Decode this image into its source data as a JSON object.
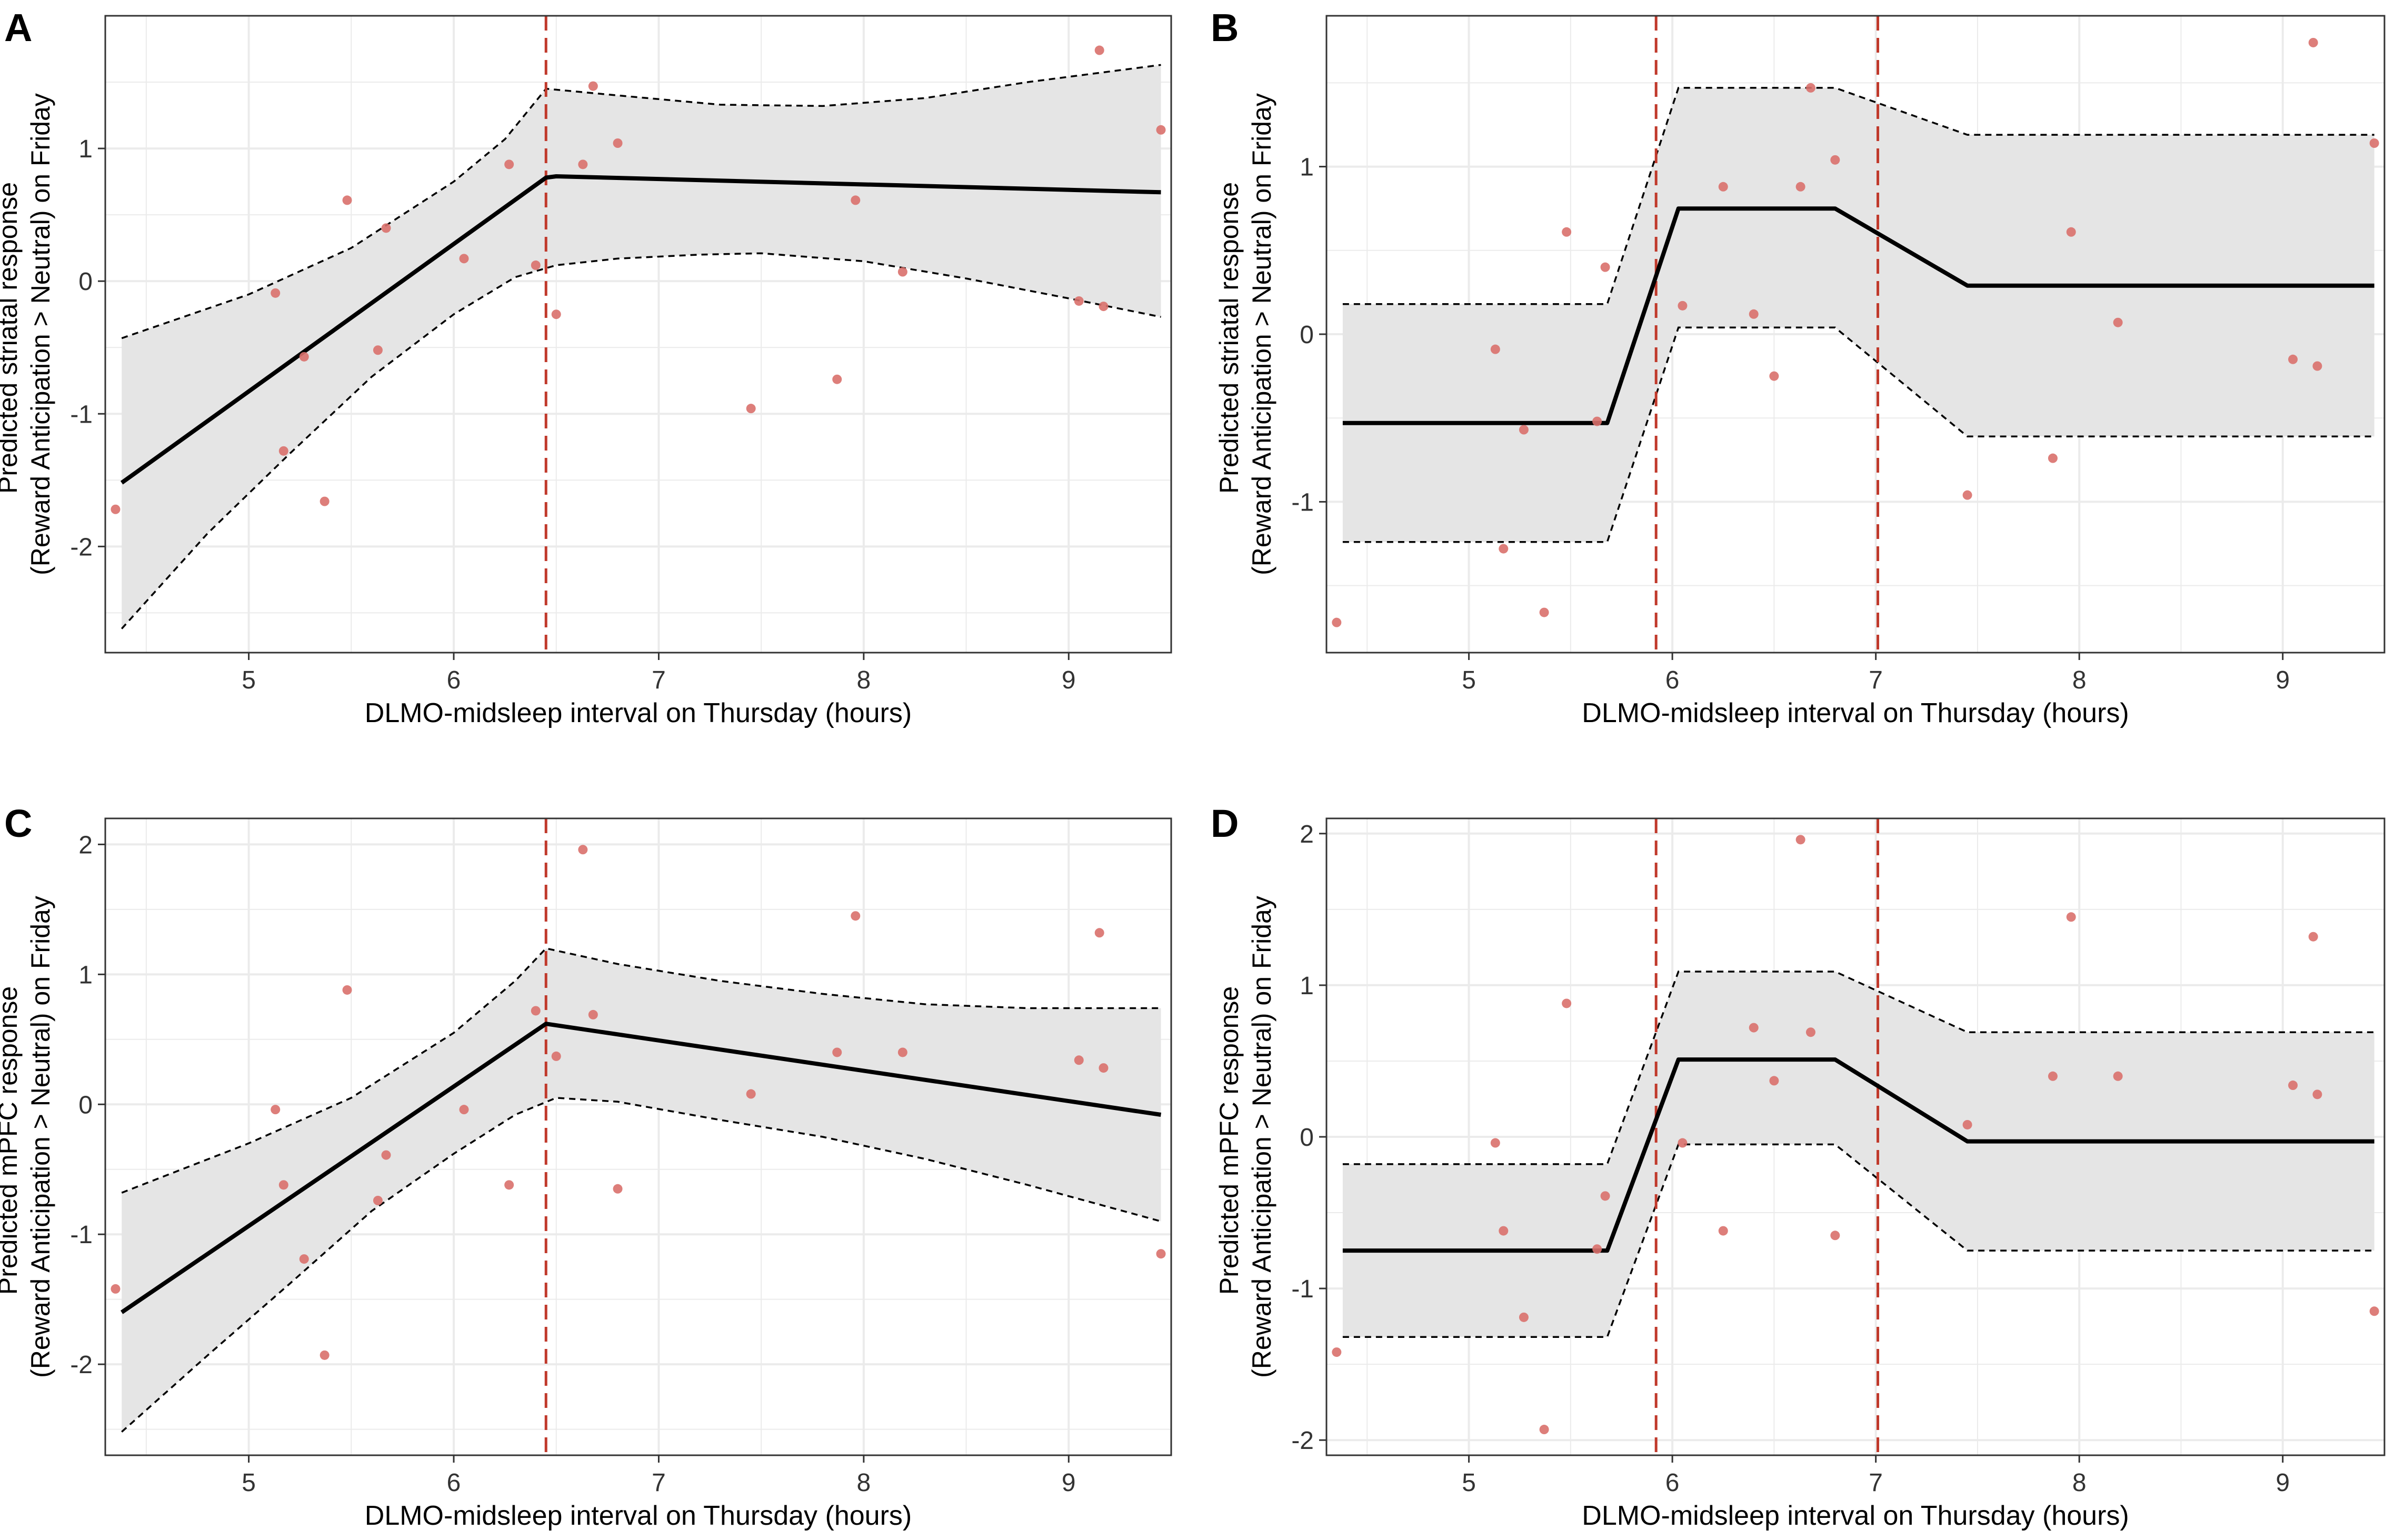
{
  "colors": {
    "grid": "#ebebeb",
    "panel_border": "#333333",
    "ribbon": "#e5e5e5",
    "ci_line": "#000000",
    "fit_line": "#000000",
    "point": "#d9706c",
    "breakpoint": "#c0392b",
    "text": "#333333"
  },
  "chart_data": [
    {
      "panel": "A",
      "type": "scatter",
      "xlabel": "DLMO-midsleep interval on Thursday (hours)",
      "ylabel": [
        "Predicted striatal response",
        "(Reward Anticipation > Neutral) on Friday"
      ],
      "xlim": [
        4.3,
        9.5
      ],
      "ylim": [
        -2.8,
        2.0
      ],
      "xticks": [
        5,
        6,
        7,
        8,
        9
      ],
      "yticks": [
        -2,
        -1,
        0,
        1
      ],
      "breakpoints": [
        6.45
      ],
      "points": [
        [
          4.35,
          -1.72
        ],
        [
          5.13,
          -0.09
        ],
        [
          5.17,
          -1.28
        ],
        [
          5.27,
          -0.57
        ],
        [
          5.37,
          -1.66
        ],
        [
          5.48,
          0.61
        ],
        [
          5.63,
          -0.52
        ],
        [
          5.67,
          0.4
        ],
        [
          6.05,
          0.17
        ],
        [
          6.27,
          0.88
        ],
        [
          6.4,
          0.12
        ],
        [
          6.5,
          -0.25
        ],
        [
          6.63,
          0.88
        ],
        [
          6.68,
          1.47
        ],
        [
          6.8,
          1.04
        ],
        [
          7.45,
          -0.96
        ],
        [
          7.87,
          -0.74
        ],
        [
          7.96,
          0.61
        ],
        [
          8.19,
          0.07
        ],
        [
          9.05,
          -0.15
        ],
        [
          9.15,
          1.74
        ],
        [
          9.17,
          -0.19
        ],
        [
          9.45,
          1.14
        ]
      ],
      "fit": [
        [
          4.38,
          -1.52
        ],
        [
          6.45,
          0.78
        ],
        [
          6.5,
          0.79
        ],
        [
          9.45,
          0.67
        ]
      ],
      "upper": [
        [
          4.38,
          -0.43
        ],
        [
          5.0,
          -0.1
        ],
        [
          5.5,
          0.25
        ],
        [
          6.0,
          0.75
        ],
        [
          6.25,
          1.07
        ],
        [
          6.45,
          1.45
        ],
        [
          6.8,
          1.4
        ],
        [
          7.3,
          1.33
        ],
        [
          7.8,
          1.32
        ],
        [
          8.3,
          1.38
        ],
        [
          8.8,
          1.5
        ],
        [
          9.45,
          1.63
        ]
      ],
      "lower": [
        [
          4.38,
          -2.62
        ],
        [
          4.8,
          -1.9
        ],
        [
          5.2,
          -1.3
        ],
        [
          5.6,
          -0.72
        ],
        [
          6.0,
          -0.25
        ],
        [
          6.3,
          0.03
        ],
        [
          6.5,
          0.12
        ],
        [
          6.8,
          0.17
        ],
        [
          7.2,
          0.2
        ],
        [
          7.5,
          0.21
        ],
        [
          8.0,
          0.15
        ],
        [
          8.5,
          0.02
        ],
        [
          9.0,
          -0.13
        ],
        [
          9.45,
          -0.27
        ]
      ]
    },
    {
      "panel": "B",
      "type": "scatter",
      "xlabel": "DLMO-midsleep interval on Thursday (hours)",
      "ylabel": [
        "Predicted striatal response",
        "(Reward Anticipation > Neutral) on Friday"
      ],
      "xlim": [
        4.3,
        9.5
      ],
      "ylim": [
        -1.9,
        1.9
      ],
      "xticks": [
        5,
        6,
        7,
        8,
        9
      ],
      "yticks": [
        -1,
        0,
        1
      ],
      "breakpoints": [
        5.92,
        7.01
      ],
      "points": [
        [
          4.35,
          -1.72
        ],
        [
          5.13,
          -0.09
        ],
        [
          5.17,
          -1.28
        ],
        [
          5.27,
          -0.57
        ],
        [
          5.37,
          -1.66
        ],
        [
          5.48,
          0.61
        ],
        [
          5.63,
          -0.52
        ],
        [
          5.67,
          0.4
        ],
        [
          6.05,
          0.17
        ],
        [
          6.25,
          0.88
        ],
        [
          6.4,
          0.12
        ],
        [
          6.5,
          -0.25
        ],
        [
          6.63,
          0.88
        ],
        [
          6.68,
          1.47
        ],
        [
          6.8,
          1.04
        ],
        [
          7.45,
          -0.96
        ],
        [
          7.87,
          -0.74
        ],
        [
          7.96,
          0.61
        ],
        [
          8.19,
          0.07
        ],
        [
          9.05,
          -0.15
        ],
        [
          9.15,
          1.74
        ],
        [
          9.17,
          -0.19
        ],
        [
          9.45,
          1.14
        ]
      ],
      "fit": [
        [
          4.38,
          -0.53
        ],
        [
          5.68,
          -0.53
        ],
        [
          6.03,
          0.75
        ],
        [
          6.8,
          0.75
        ],
        [
          7.45,
          0.29
        ],
        [
          9.45,
          0.29
        ]
      ],
      "upper": [
        [
          4.38,
          0.18
        ],
        [
          5.68,
          0.18
        ],
        [
          6.03,
          1.47
        ],
        [
          6.8,
          1.47
        ],
        [
          7.45,
          1.19
        ],
        [
          9.45,
          1.19
        ]
      ],
      "lower": [
        [
          4.38,
          -1.24
        ],
        [
          5.68,
          -1.24
        ],
        [
          6.03,
          0.04
        ],
        [
          6.8,
          0.04
        ],
        [
          7.45,
          -0.61
        ],
        [
          9.45,
          -0.61
        ]
      ]
    },
    {
      "panel": "C",
      "type": "scatter",
      "xlabel": "DLMO-midsleep interval on Thursday (hours)",
      "ylabel": [
        "Predicted mPFC response",
        "(Reward Anticipation > Neutral) on Friday"
      ],
      "xlim": [
        4.3,
        9.5
      ],
      "ylim": [
        -2.7,
        2.2
      ],
      "xticks": [
        5,
        6,
        7,
        8,
        9
      ],
      "yticks": [
        -2,
        -1,
        0,
        1,
        2
      ],
      "breakpoints": [
        6.45
      ],
      "points": [
        [
          4.35,
          -1.42
        ],
        [
          5.13,
          -0.04
        ],
        [
          5.17,
          -0.62
        ],
        [
          5.27,
          -1.19
        ],
        [
          5.37,
          -1.93
        ],
        [
          5.48,
          0.88
        ],
        [
          5.63,
          -0.74
        ],
        [
          5.67,
          -0.39
        ],
        [
          6.05,
          -0.04
        ],
        [
          6.27,
          -0.62
        ],
        [
          6.4,
          0.72
        ],
        [
          6.5,
          0.37
        ],
        [
          6.63,
          1.96
        ],
        [
          6.68,
          0.69
        ],
        [
          6.8,
          -0.65
        ],
        [
          7.45,
          0.08
        ],
        [
          7.87,
          0.4
        ],
        [
          7.96,
          1.45
        ],
        [
          8.19,
          0.4
        ],
        [
          9.05,
          0.34
        ],
        [
          9.15,
          1.32
        ],
        [
          9.17,
          0.28
        ],
        [
          9.45,
          -1.15
        ]
      ],
      "fit": [
        [
          4.38,
          -1.6
        ],
        [
          6.45,
          0.62
        ],
        [
          9.45,
          -0.08
        ]
      ],
      "upper": [
        [
          4.38,
          -0.68
        ],
        [
          5.0,
          -0.3
        ],
        [
          5.5,
          0.05
        ],
        [
          6.0,
          0.55
        ],
        [
          6.3,
          0.95
        ],
        [
          6.45,
          1.2
        ],
        [
          6.8,
          1.08
        ],
        [
          7.3,
          0.95
        ],
        [
          7.8,
          0.85
        ],
        [
          8.3,
          0.77
        ],
        [
          8.8,
          0.74
        ],
        [
          9.45,
          0.74
        ]
      ],
      "lower": [
        [
          4.38,
          -2.52
        ],
        [
          4.8,
          -1.93
        ],
        [
          5.2,
          -1.38
        ],
        [
          5.6,
          -0.82
        ],
        [
          6.0,
          -0.38
        ],
        [
          6.3,
          -0.08
        ],
        [
          6.5,
          0.05
        ],
        [
          6.8,
          0.02
        ],
        [
          7.3,
          -0.12
        ],
        [
          7.8,
          -0.25
        ],
        [
          8.3,
          -0.42
        ],
        [
          8.8,
          -0.62
        ],
        [
          9.45,
          -0.9
        ]
      ]
    },
    {
      "panel": "D",
      "type": "scatter",
      "xlabel": "DLMO-midsleep interval on Thursday (hours)",
      "ylabel": [
        "Predicted mPFC response",
        "(Reward Anticipation > Neutral) on Friday"
      ],
      "xlim": [
        4.3,
        9.5
      ],
      "ylim": [
        -2.1,
        2.1
      ],
      "xticks": [
        5,
        6,
        7,
        8,
        9
      ],
      "yticks": [
        -2,
        -1,
        0,
        1,
        2
      ],
      "breakpoints": [
        5.92,
        7.01
      ],
      "points": [
        [
          4.35,
          -1.42
        ],
        [
          5.13,
          -0.04
        ],
        [
          5.17,
          -0.62
        ],
        [
          5.27,
          -1.19
        ],
        [
          5.37,
          -1.93
        ],
        [
          5.48,
          0.88
        ],
        [
          5.63,
          -0.74
        ],
        [
          5.67,
          -0.39
        ],
        [
          6.05,
          -0.04
        ],
        [
          6.25,
          -0.62
        ],
        [
          6.4,
          0.72
        ],
        [
          6.5,
          0.37
        ],
        [
          6.63,
          1.96
        ],
        [
          6.68,
          0.69
        ],
        [
          6.8,
          -0.65
        ],
        [
          7.45,
          0.08
        ],
        [
          7.87,
          0.4
        ],
        [
          7.96,
          1.45
        ],
        [
          8.19,
          0.4
        ],
        [
          9.05,
          0.34
        ],
        [
          9.15,
          1.32
        ],
        [
          9.17,
          0.28
        ],
        [
          9.45,
          -1.15
        ]
      ],
      "fit": [
        [
          4.38,
          -0.75
        ],
        [
          5.68,
          -0.75
        ],
        [
          6.03,
          0.51
        ],
        [
          6.8,
          0.51
        ],
        [
          7.45,
          -0.03
        ],
        [
          9.45,
          -0.03
        ]
      ],
      "upper": [
        [
          4.38,
          -0.18
        ],
        [
          5.68,
          -0.18
        ],
        [
          6.03,
          1.09
        ],
        [
          6.8,
          1.09
        ],
        [
          7.45,
          0.69
        ],
        [
          9.45,
          0.69
        ]
      ],
      "lower": [
        [
          4.38,
          -1.32
        ],
        [
          5.68,
          -1.32
        ],
        [
          6.03,
          -0.05
        ],
        [
          6.8,
          -0.05
        ],
        [
          7.45,
          -0.75
        ],
        [
          9.45,
          -0.75
        ]
      ]
    }
  ]
}
